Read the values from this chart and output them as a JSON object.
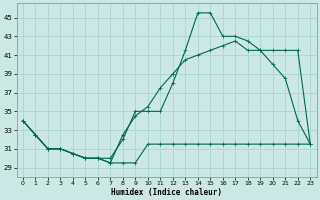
{
  "xlabel": "Humidex (Indice chaleur)",
  "background_color": "#cce8e4",
  "grid_color": "#aad4d0",
  "line_color": "#006655",
  "xlim": [
    -0.5,
    23.5
  ],
  "ylim": [
    28,
    46.5
  ],
  "xticks": [
    0,
    1,
    2,
    3,
    4,
    5,
    6,
    7,
    8,
    9,
    10,
    11,
    12,
    13,
    14,
    15,
    16,
    17,
    18,
    19,
    20,
    21,
    22,
    23
  ],
  "yticks": [
    29,
    31,
    33,
    35,
    37,
    39,
    41,
    43,
    45
  ],
  "line1_x": [
    0,
    1,
    2,
    3,
    4,
    5,
    6,
    7,
    8,
    9,
    10,
    11,
    12,
    13,
    14,
    15,
    16,
    17,
    18,
    19,
    20,
    21,
    22,
    23
  ],
  "line1_y": [
    34,
    32.5,
    31,
    31,
    30.5,
    30,
    30,
    30,
    32,
    35,
    35,
    35,
    38,
    41.5,
    45.5,
    45.5,
    43,
    43.0,
    42.5,
    41.5,
    40,
    38.5,
    34,
    31.5
  ],
  "line2_x": [
    0,
    1,
    2,
    3,
    4,
    5,
    6,
    7,
    8,
    9,
    10,
    11,
    12,
    13,
    14,
    15,
    16,
    17,
    18,
    19,
    20,
    21,
    22,
    23
  ],
  "line2_y": [
    34,
    32.5,
    31,
    31,
    30.5,
    30,
    30,
    29.5,
    29.5,
    29.5,
    31.5,
    31.5,
    31.5,
    31.5,
    31.5,
    31.5,
    31.5,
    31.5,
    31.5,
    31.5,
    31.5,
    31.5,
    31.5,
    31.5
  ],
  "line3_x": [
    0,
    1,
    2,
    3,
    4,
    5,
    6,
    7,
    8,
    9,
    10,
    11,
    12,
    13,
    14,
    15,
    16,
    17,
    18,
    19,
    20,
    21,
    22,
    23
  ],
  "line3_y": [
    34,
    32.5,
    31,
    31,
    30.5,
    30,
    30,
    29.5,
    32.5,
    34.5,
    35.5,
    37.5,
    39,
    40.5,
    41,
    41.5,
    42,
    42.5,
    41.5,
    41.5,
    41.5,
    41.5,
    41.5,
    31.5
  ]
}
